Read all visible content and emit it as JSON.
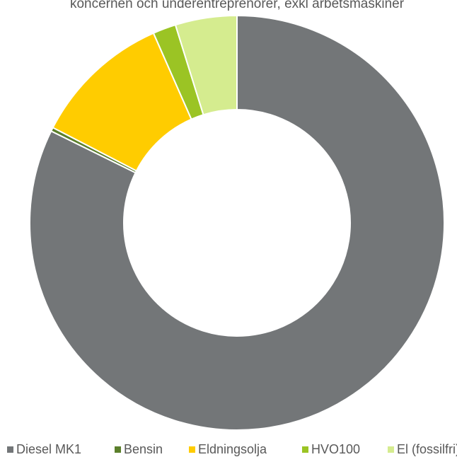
{
  "chart_data": {
    "type": "donut",
    "title": "koncernen och underentreprenörer, exkl arbetsmaskiner",
    "categories": [
      "Diesel MK1",
      "Bensin",
      "Eldningsolja",
      "HVO100",
      "El (fossilfri)"
    ],
    "values": [
      82.3,
      0.3,
      10.8,
      1.8,
      4.8
    ],
    "colors": [
      "#737678",
      "#5b7f2b",
      "#ffcc00",
      "#9bc424",
      "#d5ec8f"
    ],
    "legend": "bottom"
  }
}
